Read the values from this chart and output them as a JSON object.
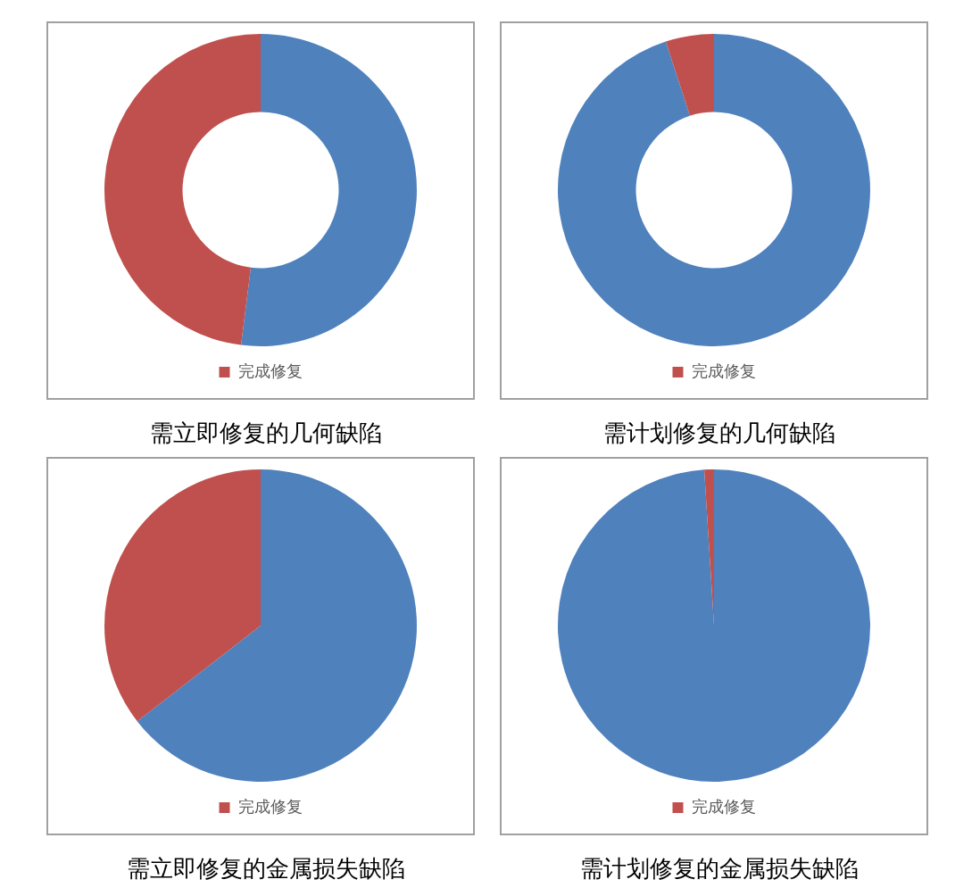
{
  "chart_data": [
    {
      "type": "donut",
      "title": "需立即修复的几何缺陷",
      "categories": [
        null,
        "完成修复"
      ],
      "values": [
        52,
        48
      ],
      "colors": [
        "#4f81bd",
        "#c0504d"
      ],
      "legend": "bottom"
    },
    {
      "type": "donut",
      "title": "需计划修复的几何缺陷",
      "categories": [
        null,
        "完成修复"
      ],
      "values": [
        95,
        5
      ],
      "colors": [
        "#4f81bd",
        "#c0504d"
      ],
      "legend": "bottom"
    },
    {
      "type": "pie",
      "title": "需立即修复的金属损失缺陷",
      "categories": [
        null,
        "完成修复"
      ],
      "values": [
        64.5,
        35.5
      ],
      "colors": [
        "#4f81bd",
        "#c0504d"
      ],
      "legend": "bottom"
    },
    {
      "type": "pie",
      "title": "需计划修复的金属损失缺陷",
      "categories": [
        null,
        "完成修复"
      ],
      "values": [
        99,
        1
      ],
      "colors": [
        "#4f81bd",
        "#c0504d"
      ],
      "legend": "bottom"
    }
  ]
}
